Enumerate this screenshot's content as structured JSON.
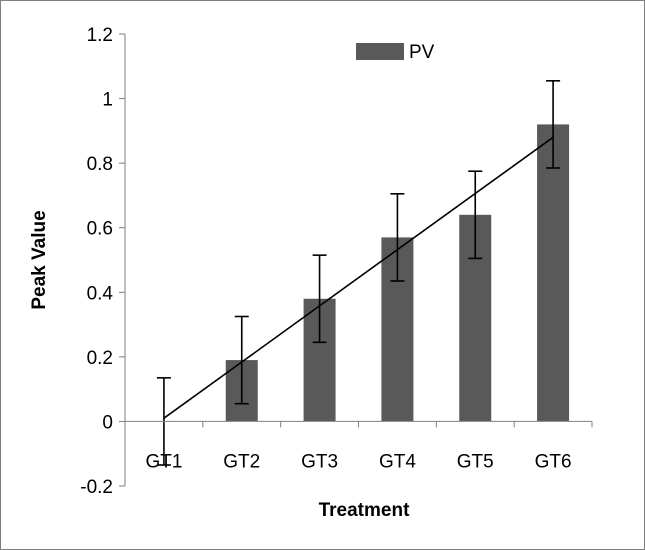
{
  "chart_data": {
    "type": "bar",
    "categories": [
      "GT1",
      "GT2",
      "GT3",
      "GT4",
      "GT5",
      "GT6"
    ],
    "series": [
      {
        "name": "PV",
        "values": [
          0.0,
          0.19,
          0.38,
          0.57,
          0.64,
          0.92
        ],
        "error": [
          0.135,
          0.135,
          0.135,
          0.135,
          0.135,
          0.135
        ],
        "color": "#595959"
      }
    ],
    "trendline": {
      "type": "linear",
      "start": 0.01,
      "end": 0.88,
      "color": "#000000"
    },
    "xlabel": "Treatment",
    "ylabel": "Peak Value",
    "ylim": [
      -0.2,
      1.2
    ],
    "yticks": [
      "-0.2",
      "0",
      "0.2",
      "0.4",
      "0.6",
      "0.8",
      "1",
      "1.2"
    ],
    "ytick_values": [
      -0.2,
      0,
      0.2,
      0.4,
      0.6,
      0.8,
      1,
      1.2
    ],
    "grid": false,
    "legend_position": "top-right"
  }
}
